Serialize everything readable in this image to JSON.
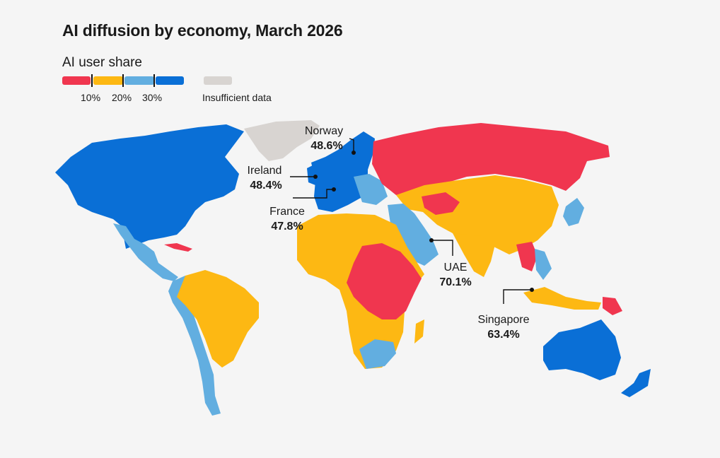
{
  "title": "AI diffusion by economy, March 2026",
  "legend": {
    "title": "AI user share",
    "colors": {
      "under_10": "#f0364f",
      "from_10_to_20": "#fdb813",
      "from_20_to_30": "#62aee0",
      "over_30": "#0a6fd6",
      "insufficient": "#d8d4d1"
    },
    "ticks": [
      "10%",
      "20%",
      "30%"
    ],
    "insufficient_label": "Insufficient data"
  },
  "callouts": [
    {
      "id": "norway",
      "name": "Norway",
      "value": "48.6%"
    },
    {
      "id": "ireland",
      "name": "Ireland",
      "value": "48.4%"
    },
    {
      "id": "france",
      "name": "France",
      "value": "47.8%"
    },
    {
      "id": "uae",
      "name": "UAE",
      "value": "70.1%"
    },
    {
      "id": "singapore",
      "name": "Singapore",
      "value": "63.4%"
    }
  ],
  "map": {
    "ocean": "#f5f5f5",
    "line_color": "#111111"
  }
}
